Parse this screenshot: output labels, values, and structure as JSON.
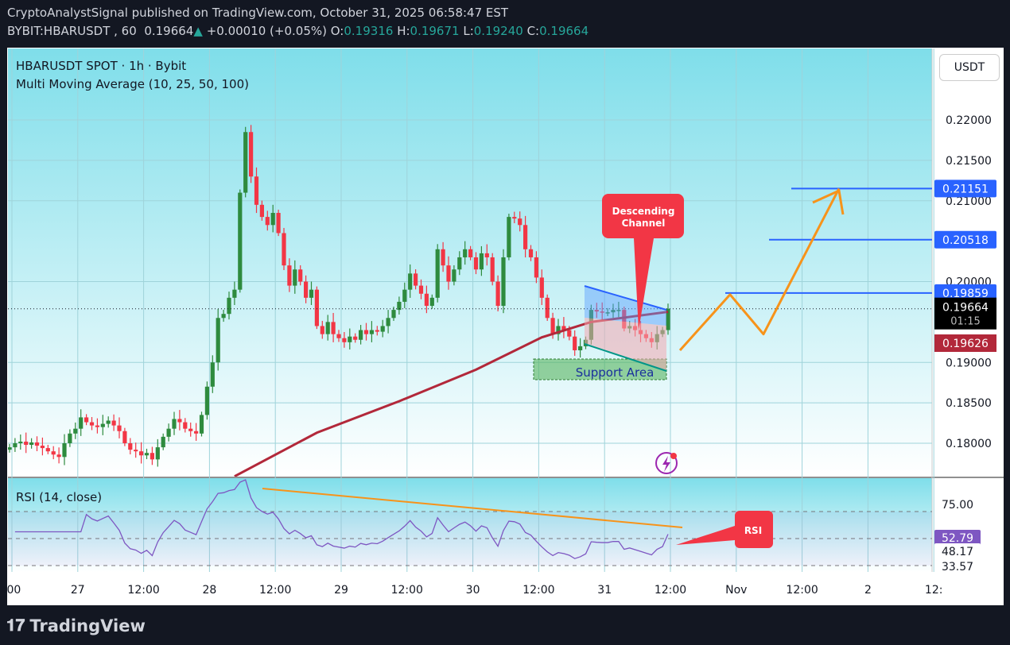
{
  "header": {
    "published": "CryptoAnalystSignal published on TradingView.com, October 31, 2025 06:58:47 EST",
    "symbol": "BYBIT:HBARUSDT , 60",
    "last": "0.19664",
    "change": "+0.00010 (+0.05%)",
    "o_label": "O:",
    "o": "0.19316",
    "h_label": "H:",
    "h": "0.19671",
    "l_label": "L:",
    "l": "0.19240",
    "c_label": "C:",
    "c": "0.19664"
  },
  "legend": {
    "title": "HBARUSDT SPOT · 1h · Bybit",
    "indicator": "Multi Moving Average (10, 25, 50, 100)",
    "rsi": "RSI (14, close)"
  },
  "currency_button": "USDT",
  "brand": "TradingView",
  "colors": {
    "up": "#2e8b3e",
    "down": "#f23645",
    "ma": "#b2283a",
    "level": "#2962ff",
    "projection": "#f7931a",
    "callout": "#f23645",
    "rsi": "#7e57c2",
    "bg_top": "#7fdeea"
  },
  "chart_data": {
    "type": "candlestick",
    "timeframe": "1h",
    "x_ticks": [
      ":00",
      "27",
      "12:00",
      "28",
      "12:00",
      "29",
      "12:00",
      "30",
      "12:00",
      "31",
      "12:00",
      "Nov",
      "12:00",
      "2",
      "12:"
    ],
    "y_ticks": [
      "0.22000",
      "0.21500",
      "0.21000",
      "0.20000",
      "0.19000",
      "0.18500",
      "0.18000"
    ],
    "ylim": [
      0.1755,
      0.2265
    ],
    "closes": [
      0.1795,
      0.18,
      0.1802,
      0.1798,
      0.1801,
      0.1797,
      0.1794,
      0.179,
      0.1786,
      0.1783,
      0.18,
      0.1812,
      0.1818,
      0.1832,
      0.1826,
      0.1822,
      0.182,
      0.1824,
      0.1828,
      0.1822,
      0.1815,
      0.18,
      0.1792,
      0.179,
      0.1785,
      0.1788,
      0.178,
      0.1795,
      0.1808,
      0.1818,
      0.183,
      0.1826,
      0.1818,
      0.1815,
      0.1812,
      0.1835,
      0.187,
      0.19,
      0.1955,
      0.196,
      0.198,
      0.199,
      0.211,
      0.2185,
      0.213,
      0.2095,
      0.208,
      0.207,
      0.2085,
      0.206,
      0.202,
      0.1995,
      0.2015,
      0.2,
      0.198,
      0.199,
      0.1945,
      0.1935,
      0.195,
      0.1935,
      0.193,
      0.1925,
      0.1932,
      0.1928,
      0.194,
      0.1935,
      0.194,
      0.1938,
      0.1945,
      0.1955,
      0.1965,
      0.1975,
      0.199,
      0.201,
      0.1995,
      0.1985,
      0.197,
      0.198,
      0.204,
      0.202,
      0.2,
      0.2015,
      0.203,
      0.204,
      0.203,
      0.2015,
      0.2035,
      0.203,
      0.2,
      0.197,
      0.203,
      0.208,
      0.2078,
      0.207,
      0.204,
      0.203,
      0.2005,
      0.198,
      0.1955,
      0.1935,
      0.1945,
      0.194,
      0.1932,
      0.1915,
      0.192,
      0.1928,
      0.1965,
      0.1963,
      0.1962,
      0.1962,
      0.1965,
      0.1965,
      0.1942,
      0.1945,
      0.194,
      0.1935,
      0.193,
      0.1925,
      0.1935,
      0.194,
      0.19664
    ],
    "ma100": [
      [
        41,
        0.1759
      ],
      [
        56,
        0.1813
      ],
      [
        71,
        0.1852
      ],
      [
        85,
        0.1891
      ],
      [
        97,
        0.1931
      ],
      [
        106,
        0.195
      ],
      [
        120,
        0.19626
      ]
    ],
    "levels": [
      {
        "value": 0.21151,
        "label": "0.21151"
      },
      {
        "value": 0.20518,
        "label": "0.20518"
      },
      {
        "value": 0.19859,
        "label": "0.19859"
      }
    ],
    "last_price": {
      "value": 0.19664,
      "label": "0.19664",
      "countdown": "01:15"
    },
    "ma_price": {
      "value": 0.19626,
      "label": "0.19626"
    },
    "annotations": {
      "channel": "Descending Channel",
      "support": "Support Area",
      "rsi_callout": "RSI"
    },
    "projection": [
      [
        0.1915
      ],
      [
        0.1984
      ],
      [
        0.1935
      ],
      [
        0.2115
      ]
    ],
    "rsi": {
      "ticks": [
        "75.00",
        "48.17",
        "33.57"
      ],
      "current": "52.79",
      "levels": [
        70,
        50,
        30
      ]
    }
  }
}
